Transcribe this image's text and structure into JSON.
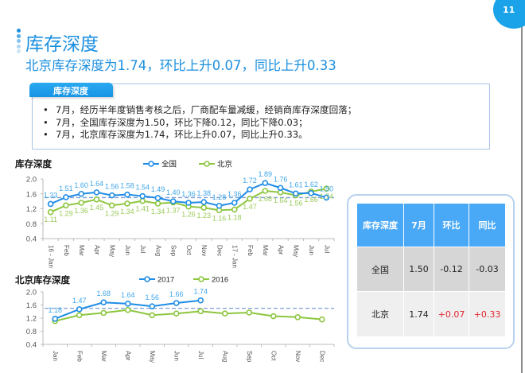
{
  "page": {
    "number": "11"
  },
  "header": {
    "title": "库存深度",
    "subtitle": "北京库存深度为1.74，环比上升0.07，同比上升0.33"
  },
  "info_box": {
    "tab_label": "库存深度",
    "bullets": [
      "7月，经历半年度销售考核之后，厂商配车量减缓，经销商库存深度回落；",
      "7月，全国库存深度为1.50，环比下降0.12，同比下降0.03；",
      "7月，北京库存深度为1.74，环比上升0.07，同比上升0.33。"
    ]
  },
  "table": {
    "headers": [
      "库存深度",
      "7月",
      "环比",
      "同比"
    ],
    "rows": [
      {
        "name": "全国",
        "jul": "1.50",
        "mom": "-0.12",
        "yoy": "-0.03"
      },
      {
        "name": "北京",
        "jul": "1.74",
        "mom": "+0.07",
        "yoy": "+0.33"
      }
    ]
  },
  "colors": {
    "accent": "#1a8fe0",
    "national": "#1f8ce6",
    "beijing": "#8dc63f",
    "dashed": "#7e9fd6",
    "positive_change": "#e0242c",
    "table_header": "#4aa9f6"
  },
  "chart_data": [
    {
      "type": "line",
      "title": "库存深度",
      "categories": [
        "16 - Jan",
        "Feb",
        "Mar",
        "Apr",
        "May",
        "Jun",
        "Jul",
        "Aug",
        "Sep",
        "Oct",
        "Nov",
        "Dec",
        "17 - Jan",
        "Feb",
        "Mar",
        "Apr",
        "May",
        "Jun",
        "Jul"
      ],
      "series": [
        {
          "name": "全国",
          "color": "#1f8ce6",
          "values": [
            1.33,
            1.51,
            1.6,
            1.64,
            1.56,
            1.58,
            1.54,
            1.49,
            1.4,
            1.36,
            1.38,
            1.28,
            1.36,
            1.72,
            1.89,
            1.76,
            1.61,
            1.62,
            1.5
          ]
        },
        {
          "name": "北京",
          "color": "#8dc63f",
          "values": [
            1.11,
            1.29,
            1.36,
            1.45,
            1.29,
            1.34,
            1.41,
            1.34,
            1.37,
            1.26,
            1.23,
            1.16,
            1.18,
            1.47,
            1.68,
            1.64,
            1.56,
            1.66,
            1.74
          ]
        }
      ],
      "reference_line": 1.5,
      "yticks": [
        "2.0",
        "1.6",
        "1.2",
        "0.8",
        "0.4"
      ],
      "ylim": [
        0.4,
        2.0
      ],
      "legend_position": "top",
      "grid": false
    },
    {
      "type": "line",
      "title": "北京库存深度",
      "categories": [
        "Jan",
        "Feb",
        "Mar",
        "Apr",
        "May",
        "Jun",
        "Jul",
        "Aug",
        "Sep",
        "Oct",
        "Nov",
        "Dec"
      ],
      "series": [
        {
          "name": "2017",
          "color": "#1f8ce6",
          "values": [
            1.18,
            1.47,
            1.68,
            1.64,
            1.56,
            1.66,
            1.74
          ]
        },
        {
          "name": "2016",
          "color": "#8dc63f",
          "values": [
            1.11,
            1.29,
            1.36,
            1.45,
            1.29,
            1.34,
            1.41,
            1.34,
            1.37,
            1.26,
            1.23,
            1.16
          ]
        }
      ],
      "reference_line": 1.5,
      "yticks": [
        "2.0",
        "1.6",
        "1.2",
        "0.8",
        "0.4"
      ],
      "ylim": [
        0.4,
        2.0
      ],
      "legend_position": "top",
      "grid": false
    }
  ]
}
